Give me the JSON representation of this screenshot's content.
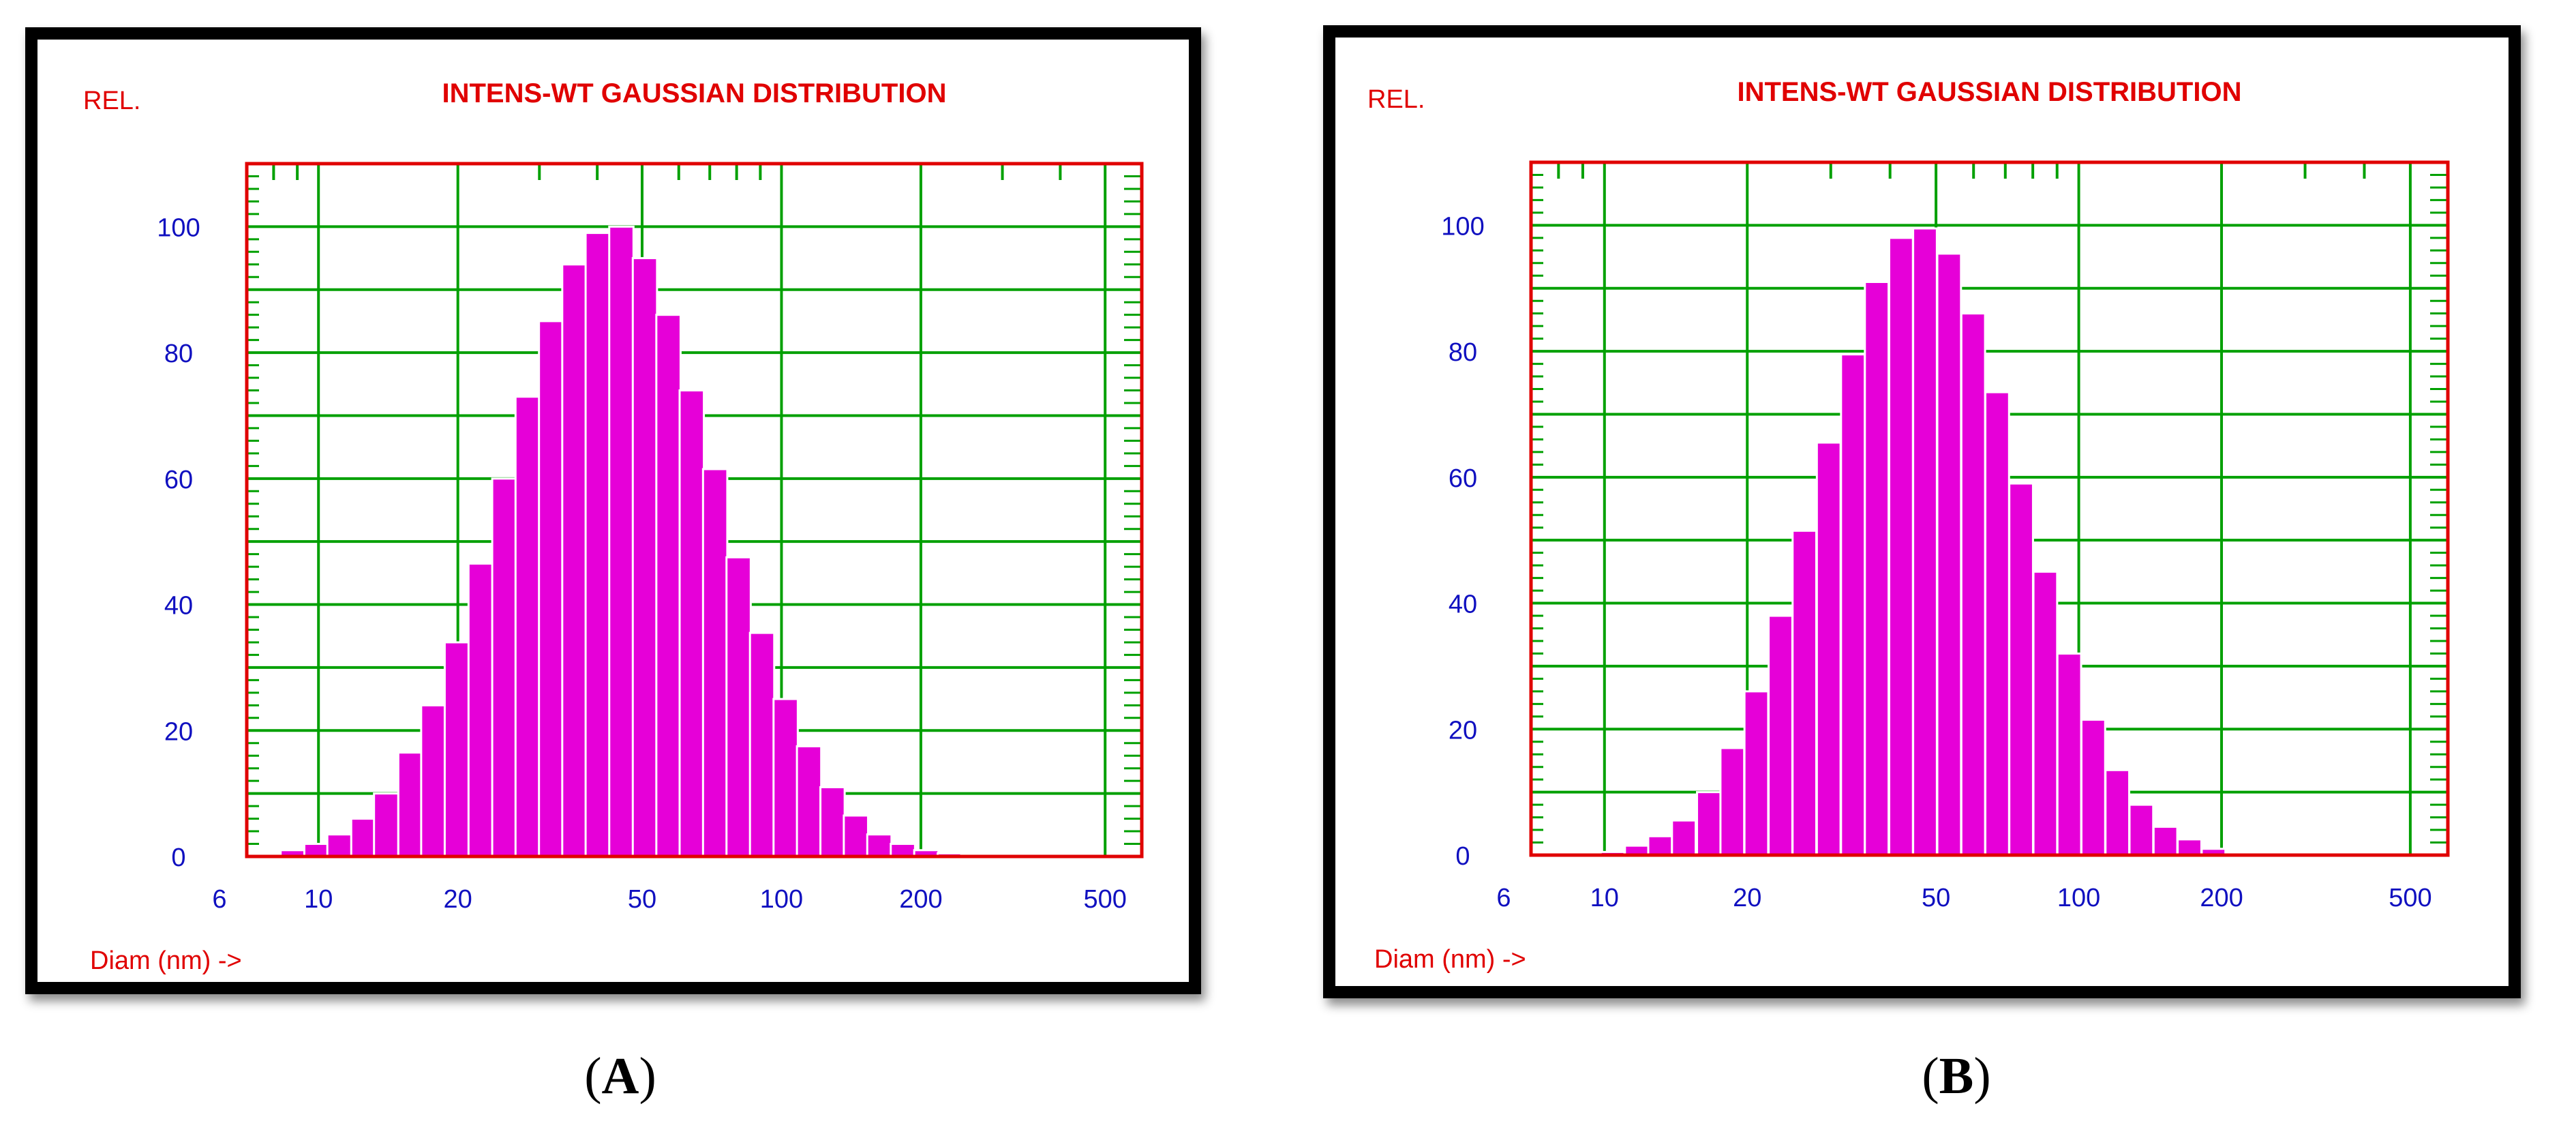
{
  "panel_labels": [
    "(A)",
    "(B)"
  ],
  "colors": {
    "bar": "#e600d8",
    "bar_edge": "#ffffff",
    "grid": "#00a000",
    "frame": "#e00000",
    "tick_text": "#1010c0",
    "label_text": "#e00000"
  },
  "chart_data": [
    {
      "type": "bar",
      "title": "INTENS-WT GAUSSIAN DISTRIBUTION",
      "ylabel": "REL.",
      "xlabel": "Diam (nm) ->",
      "x_scale": "log",
      "xlim": [
        7,
        600
      ],
      "ylim": [
        0,
        110
      ],
      "x_ticks": [
        6,
        10,
        20,
        50,
        100,
        200,
        500
      ],
      "y_ticks": [
        0,
        20,
        40,
        60,
        80,
        100
      ],
      "grid": true,
      "x": [
        7.8,
        8.8,
        9.9,
        11.1,
        12.5,
        14.0,
        15.8,
        17.7,
        19.9,
        22.4,
        25.2,
        28.3,
        31.8,
        35.7,
        40.1,
        45.1,
        50.7,
        57.0,
        64.0,
        71.9,
        80.8,
        90.8,
        102.1,
        114.7,
        128.9,
        144.8,
        162.7,
        182.9,
        205.5,
        230.9,
        259.5,
        291.6,
        327.7,
        368.3,
        413.8
      ],
      "values": [
        0.3,
        1,
        2,
        3.5,
        6,
        10,
        16.5,
        24,
        34,
        46.5,
        60,
        73,
        85,
        94,
        99,
        100,
        95,
        86,
        74,
        61.5,
        47.5,
        35.5,
        25,
        17.5,
        11,
        6.5,
        3.5,
        2,
        1,
        0.5,
        0.2,
        0,
        0,
        0,
        0
      ]
    },
    {
      "type": "bar",
      "title": "INTENS-WT GAUSSIAN DISTRIBUTION",
      "ylabel": "REL.",
      "xlabel": "Diam (nm) ->",
      "x_scale": "log",
      "xlim": [
        7,
        600
      ],
      "ylim": [
        0,
        110
      ],
      "x_ticks": [
        6,
        10,
        20,
        50,
        100,
        200,
        500
      ],
      "y_ticks": [
        0,
        20,
        40,
        60,
        80,
        100
      ],
      "grid": true,
      "x": [
        8.2,
        9.2,
        10.4,
        11.7,
        13.1,
        14.7,
        16.6,
        18.6,
        20.9,
        23.5,
        26.4,
        29.7,
        33.4,
        37.5,
        42.2,
        47.4,
        53.3,
        59.9,
        67.3,
        75.6,
        85.0,
        95.5,
        107.3,
        120.6,
        135.5,
        152.3,
        171.2,
        192.4,
        216.2,
        243.0,
        273.1,
        306.9,
        344.9,
        387.6,
        435.6
      ],
      "values": [
        0,
        0.2,
        0.5,
        1.5,
        3,
        5.5,
        10,
        17,
        26,
        38,
        51.5,
        65.5,
        79.5,
        91,
        98,
        99.5,
        95.5,
        86,
        73.5,
        59,
        45,
        32,
        21.5,
        13.5,
        8,
        4.5,
        2.5,
        1,
        0.4,
        0.2,
        0,
        0,
        0,
        0,
        0
      ]
    }
  ]
}
